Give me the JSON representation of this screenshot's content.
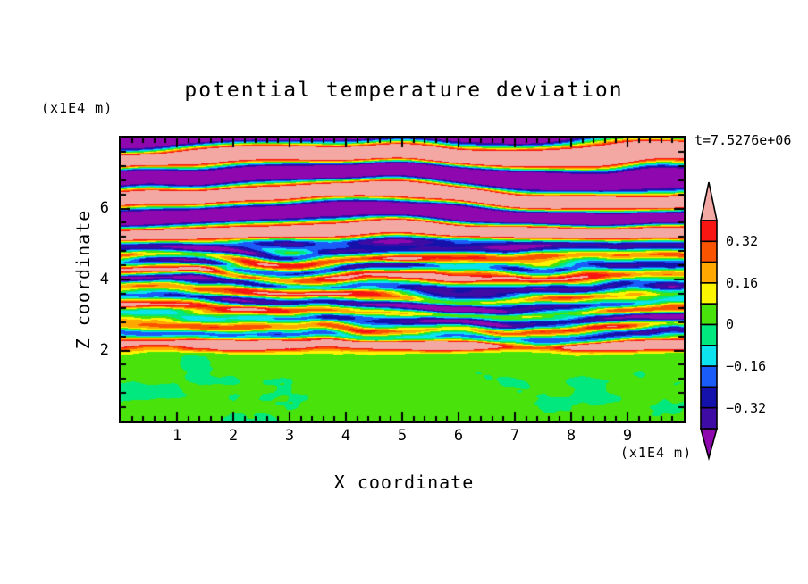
{
  "title": "potential temperature deviation",
  "time_annotation": "t=7.5276e+06",
  "units": {
    "z_units_label": "(x1E4 m)",
    "x_units_label": "(x1E4 m)"
  },
  "axes": {
    "x": {
      "label": "X coordinate",
      "min": 0,
      "max": 10,
      "tick_values": [
        1,
        2,
        3,
        4,
        5,
        6,
        7,
        8,
        9
      ],
      "tick_labels": [
        "1",
        "2",
        "3",
        "4",
        "5",
        "6",
        "7",
        "8",
        "9"
      ],
      "minor_step": 0.2
    },
    "z": {
      "label": "Z coordinate",
      "min": 0,
      "max": 8,
      "tick_values": [
        2,
        4,
        6
      ],
      "tick_labels": [
        "2",
        "4",
        "6"
      ],
      "minor_step": 0.4
    }
  },
  "colorbar": {
    "orientation": "vertical",
    "outline_color": "#000000",
    "over_color": "#F4A8A4",
    "under_color": "#8F07AE",
    "tick_labels": [
      {
        "text": "0.32",
        "value": 0.32
      },
      {
        "text": "0.16",
        "value": 0.16
      },
      {
        "text": "0",
        "value": 0
      },
      {
        "text": "−0.16",
        "value": -0.16
      },
      {
        "text": "−0.32",
        "value": -0.32
      }
    ]
  },
  "chart_data": {
    "type": "heatmap",
    "subtype": "filled_contour",
    "title": "potential temperature deviation",
    "time": "t=7.5276e+06",
    "xlabel": "X coordinate",
    "ylabel": "Z coordinate",
    "x_units": "x1E4 m",
    "z_units": "x1E4 m",
    "xlim": [
      0,
      10
    ],
    "zlim": [
      0,
      8
    ],
    "grid": false,
    "legend_position": "right-colorbar",
    "contour_interval": 0.08,
    "levels": [
      -0.4,
      -0.32,
      -0.24,
      -0.16,
      -0.08,
      0,
      0.08,
      0.16,
      0.24,
      0.32,
      0.4
    ],
    "labeled_levels": [
      0.32,
      0.16,
      0,
      -0.16,
      -0.32
    ],
    "palette": [
      {
        "range": "< -0.40",
        "name": "purple",
        "color": "#8F07AE"
      },
      {
        "range": "-0.40 to -0.32",
        "name": "indigo",
        "color": "#3F0BA5"
      },
      {
        "range": "-0.32 to -0.24",
        "name": "navy",
        "color": "#1512AC"
      },
      {
        "range": "-0.24 to -0.16",
        "name": "blue",
        "color": "#1A5CF8"
      },
      {
        "range": "-0.16 to -0.08",
        "name": "cyan",
        "color": "#0CE3EE"
      },
      {
        "range": "-0.08 to 0",
        "name": "springgreen",
        "color": "#00E87E"
      },
      {
        "range": "0 to 0.08",
        "name": "chartreuse",
        "color": "#49E20B"
      },
      {
        "range": "0.08 to 0.16",
        "name": "yellow",
        "color": "#FBF500"
      },
      {
        "range": "0.16 to 0.24",
        "name": "orange",
        "color": "#FFA800"
      },
      {
        "range": "0.24 to 0.32",
        "name": "orangered",
        "color": "#FB5400"
      },
      {
        "range": "0.32 to 0.40",
        "name": "red",
        "color": "#F81613"
      },
      {
        "range": "> 0.40",
        "name": "pink",
        "color": "#F4A8A4"
      }
    ],
    "field_structure": [
      {
        "name": "well-mixed lower layer",
        "z_range": [
          0,
          2
        ],
        "value_range": [
          -0.08,
          0.08
        ],
        "pattern": "smooth swirling blobs of spring-green and chartreuse only, thin yellow/pink streak capping the layer near z=2"
      },
      {
        "name": "turbulent braided layer",
        "z_range": [
          2,
          5
        ],
        "value_range": [
          -0.45,
          0.45
        ],
        "pattern": "thin strongly-elongated horizontal streaks cycling through the full palette (red/orange/yellow/green/cyan/blue/navy/purple)"
      },
      {
        "name": "strong wave layer",
        "z_range": [
          5,
          8
        ],
        "value_range": [
          -0.95,
          0.95
        ],
        "pattern": "wide alternating pink (>0.40) and purple (<-0.40) undulating bands with thin rainbow fringes at band edges"
      }
    ]
  }
}
